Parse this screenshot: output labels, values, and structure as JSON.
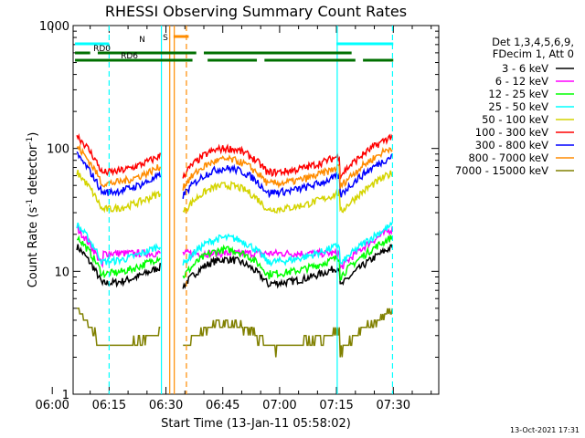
{
  "chart_data": {
    "type": "line",
    "title": "RHESSI Observing Summary Count Rates",
    "xlabel": "Start Time (13-Jan-11 05:58:02)",
    "ylabel_main": "Count Rate (s",
    "ylabel_sup": "-1",
    "ylabel_mid": " detector",
    "ylabel_end": ")",
    "y_scale": "log",
    "ylim": [
      1,
      1000
    ],
    "xlim_minutes": [
      5.5,
      102
    ],
    "x_ticks": [
      {
        "label": "06:00",
        "minute": 0
      },
      {
        "label": "06:15",
        "minute": 15
      },
      {
        "label": "06:30",
        "minute": 30
      },
      {
        "label": "06:45",
        "minute": 45
      },
      {
        "label": "07:00",
        "minute": 60
      },
      {
        "label": "07:15",
        "minute": 75
      },
      {
        "label": "07:30",
        "minute": 90
      }
    ],
    "y_ticks": [
      {
        "label": "1",
        "value": 1
      },
      {
        "label": "10",
        "value": 10
      },
      {
        "label": "100",
        "value": 100
      },
      {
        "label": "1000",
        "value": 1000
      }
    ],
    "legend": {
      "header": [
        "Det 1,3,4,5,6,9,",
        "FDecim 1, Att 0"
      ],
      "placement": "right"
    },
    "series": [
      {
        "name": "3 - 6 keV",
        "color": "#000000",
        "level": 10,
        "shape": "arc"
      },
      {
        "name": "6 - 12 keV",
        "color": "#ff00ff",
        "level": 14,
        "shape": "flat"
      },
      {
        "name": "12 - 25 keV",
        "color": "#00ff00",
        "level": 12,
        "shape": "arc"
      },
      {
        "name": "25 - 50 keV",
        "color": "#00ffff",
        "level": 15,
        "shape": "arc"
      },
      {
        "name": "50 - 100 keV",
        "color": "#d4d400",
        "level": 40,
        "shape": "arc"
      },
      {
        "name": "100 - 300 keV",
        "color": "#ff0000",
        "level": 80,
        "shape": "arc"
      },
      {
        "name": "300 - 800 keV",
        "color": "#0000ff",
        "level": 55,
        "shape": "arc"
      },
      {
        "name": "800 - 7000 keV",
        "color": "#ff8c00",
        "level": 65,
        "shape": "arc"
      },
      {
        "name": "7000 - 15000 keV",
        "color": "#808000",
        "level": 3,
        "shape": "steps"
      }
    ],
    "segments": [
      {
        "start": 6.5,
        "end": 13.5,
        "kind": "orbit_edge_left"
      },
      {
        "start": 13.5,
        "end": 28.7,
        "kind": "day"
      },
      {
        "start": 34.5,
        "end": 57.5,
        "kind": "day_arc"
      },
      {
        "start": 57.5,
        "end": 76.0,
        "kind": "day"
      },
      {
        "start": 76.0,
        "end": 90.0,
        "kind": "orbit_edge_right"
      }
    ],
    "markers": [
      {
        "label": "RD0",
        "color": "#007000",
        "start": 6.0,
        "end": 79.0,
        "row": "upper",
        "gaps": [
          [
            10,
            12
          ],
          [
            38,
            40
          ]
        ]
      },
      {
        "label": "RD6",
        "color": "#007000",
        "start": 6.0,
        "end": 90.0,
        "row": "lower",
        "gaps": [
          [
            37,
            41
          ],
          [
            54,
            56
          ],
          [
            80,
            82
          ]
        ]
      },
      {
        "label": "N",
        "color": "#00ffff",
        "start": 6.0,
        "end": 15.0,
        "row": "top"
      },
      {
        "label": "",
        "color": "#00ffff",
        "start": 75.0,
        "end": 90.0,
        "row": "top"
      },
      {
        "label": "S",
        "color": "#ff8c00",
        "start": 32.0,
        "end": 36.0,
        "row": "saa"
      }
    ],
    "vlines": [
      {
        "minute": 28.8,
        "color": "#00ffff",
        "style": "solid"
      },
      {
        "minute": 15.0,
        "color": "#00ffff",
        "style": "dashed"
      },
      {
        "minute": 31.0,
        "color": "#ff8c00",
        "style": "solid"
      },
      {
        "minute": 32.2,
        "color": "#ff8c00",
        "style": "solid"
      },
      {
        "minute": 35.4,
        "color": "#ff8c00",
        "style": "dashed"
      },
      {
        "minute": 75.2,
        "color": "#00ffff",
        "style": "solid"
      },
      {
        "minute": 89.8,
        "color": "#00ffff",
        "style": "dashed"
      }
    ]
  },
  "footer": {
    "timestamp": "13-Oct-2021 17:31"
  }
}
